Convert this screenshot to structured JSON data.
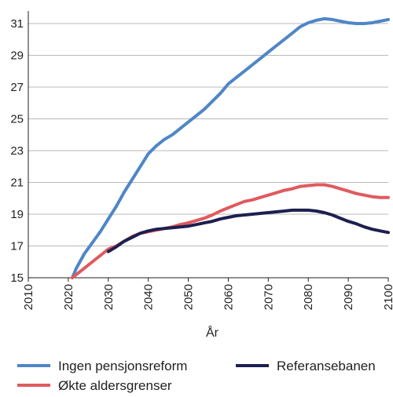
{
  "chart_data": {
    "type": "line",
    "title": "",
    "xlabel": "År",
    "ylabel": "",
    "xlim": [
      2010,
      2100
    ],
    "ylim": [
      15,
      32
    ],
    "xticks": [
      "2010",
      "2020",
      "2030",
      "2040",
      "2050",
      "2060",
      "2070",
      "2080",
      "2090",
      "2100"
    ],
    "yticks": [
      "15",
      "17",
      "19",
      "21",
      "23",
      "25",
      "27",
      "29",
      "31"
    ],
    "grid": "horizontal",
    "legend_position": "bottom",
    "series": [
      {
        "name": "Ingen pensjonsreform",
        "color": "#4f86c6",
        "x": [
          2021,
          2022,
          2024,
          2026,
          2028,
          2030,
          2032,
          2034,
          2036,
          2038,
          2040,
          2042,
          2044,
          2046,
          2048,
          2050,
          2052,
          2054,
          2056,
          2058,
          2060,
          2062,
          2064,
          2066,
          2068,
          2070,
          2072,
          2074,
          2076,
          2078,
          2080,
          2082,
          2084,
          2086,
          2088,
          2090,
          2092,
          2094,
          2096,
          2098,
          2100
        ],
        "values": [
          15.0,
          15.6,
          16.5,
          17.2,
          17.9,
          18.7,
          19.5,
          20.4,
          21.2,
          22.0,
          22.8,
          23.3,
          23.7,
          24.0,
          24.4,
          24.8,
          25.2,
          25.6,
          26.1,
          26.6,
          27.2,
          27.6,
          28.0,
          28.4,
          28.8,
          29.2,
          29.6,
          30.0,
          30.4,
          30.8,
          31.05,
          31.2,
          31.3,
          31.25,
          31.15,
          31.05,
          31.0,
          31.0,
          31.05,
          31.15,
          31.25
        ]
      },
      {
        "name": "Økte aldersgrenser",
        "color": "#e05a5f",
        "x": [
          2021,
          2022,
          2024,
          2026,
          2028,
          2030,
          2032,
          2034,
          2036,
          2038,
          2040,
          2042,
          2044,
          2046,
          2048,
          2050,
          2052,
          2054,
          2056,
          2058,
          2060,
          2062,
          2064,
          2066,
          2068,
          2070,
          2072,
          2074,
          2076,
          2078,
          2080,
          2082,
          2084,
          2086,
          2088,
          2090,
          2092,
          2094,
          2096,
          2098,
          2100
        ],
        "values": [
          15.0,
          15.2,
          15.6,
          16.0,
          16.4,
          16.8,
          17.0,
          17.3,
          17.6,
          17.8,
          17.9,
          18.0,
          18.1,
          18.2,
          18.35,
          18.45,
          18.6,
          18.75,
          18.95,
          19.2,
          19.4,
          19.6,
          19.8,
          19.9,
          20.05,
          20.2,
          20.35,
          20.5,
          20.6,
          20.75,
          20.8,
          20.85,
          20.85,
          20.75,
          20.6,
          20.45,
          20.3,
          20.2,
          20.1,
          20.05,
          20.05
        ]
      },
      {
        "name": "Referansebanen",
        "color": "#1d1f4f",
        "x": [
          2030,
          2032,
          2034,
          2036,
          2038,
          2040,
          2042,
          2044,
          2046,
          2048,
          2050,
          2052,
          2054,
          2056,
          2058,
          2060,
          2062,
          2064,
          2066,
          2068,
          2070,
          2072,
          2074,
          2076,
          2078,
          2080,
          2082,
          2084,
          2086,
          2088,
          2090,
          2092,
          2094,
          2096,
          2098,
          2100
        ],
        "values": [
          16.65,
          16.95,
          17.3,
          17.55,
          17.8,
          17.95,
          18.05,
          18.1,
          18.15,
          18.2,
          18.25,
          18.35,
          18.45,
          18.55,
          18.7,
          18.8,
          18.9,
          18.95,
          19.0,
          19.05,
          19.1,
          19.15,
          19.2,
          19.25,
          19.25,
          19.25,
          19.2,
          19.1,
          18.95,
          18.75,
          18.55,
          18.4,
          18.2,
          18.05,
          17.95,
          17.85
        ]
      }
    ]
  }
}
